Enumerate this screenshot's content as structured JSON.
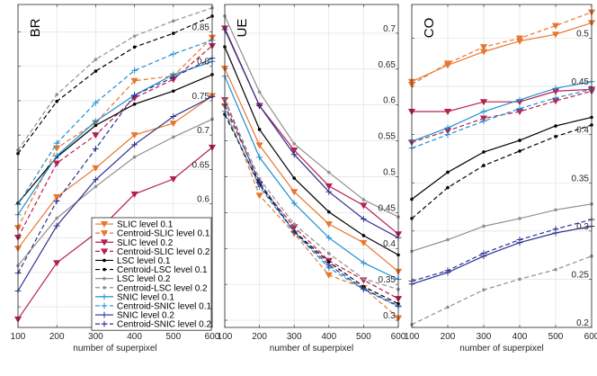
{
  "chart_data": [
    {
      "type": "line",
      "title": "BR",
      "xlabel": "number of superpixel",
      "ylabel": "",
      "x": [
        100,
        200,
        300,
        400,
        500,
        600
      ],
      "xlim": [
        100,
        600
      ],
      "ylim": [
        0.42,
        0.89
      ],
      "yticks": [
        0.45,
        0.5,
        0.55,
        0.6,
        0.65,
        0.7,
        0.75,
        0.8,
        0.85
      ],
      "ytick_labels": [
        "0.45",
        "0.5",
        "0.55",
        "0.6",
        "0.65",
        "0.7",
        "0.75",
        "0.8",
        "0.85"
      ],
      "grid": true,
      "legend_position": "bottom-right",
      "series": [
        {
          "name": "SLIC level 0.1",
          "color": "#e8772e",
          "dash": "solid",
          "marker": "triangle-down",
          "values": [
            0.535,
            0.61,
            0.652,
            0.7,
            0.717,
            0.757
          ]
        },
        {
          "name": "Centroid-SLIC level 0.1",
          "color": "#e8772e",
          "dash": "dashed",
          "marker": "triangle-down",
          "values": [
            0.565,
            0.681,
            0.718,
            0.779,
            0.786,
            0.842
          ]
        },
        {
          "name": "SLIC level 0.2",
          "color": "#b5204f",
          "dash": "solid",
          "marker": "triangle-down",
          "values": [
            0.432,
            0.514,
            0.557,
            0.614,
            0.636,
            0.682
          ]
        },
        {
          "name": "Centroid-SLIC level 0.2",
          "color": "#b5204f",
          "dash": "dashed",
          "marker": "triangle-down",
          "values": [
            0.551,
            0.659,
            0.7,
            0.754,
            0.781,
            0.83
          ]
        },
        {
          "name": "LSC level 0.1",
          "color": "#000000",
          "dash": "solid",
          "marker": "dot",
          "values": [
            0.601,
            0.668,
            0.714,
            0.745,
            0.764,
            0.788
          ]
        },
        {
          "name": "Centroid-LSC level 0.1",
          "color": "#000000",
          "dash": "dashed",
          "marker": "dot",
          "values": [
            0.673,
            0.749,
            0.793,
            0.828,
            0.848,
            0.873
          ]
        },
        {
          "name": "LSC level 0.2",
          "color": "#909090",
          "dash": "solid",
          "marker": "dot",
          "values": [
            0.51,
            0.579,
            0.625,
            0.668,
            0.697,
            0.723
          ]
        },
        {
          "name": "Centroid-LSC level 0.2",
          "color": "#909090",
          "dash": "dashed",
          "marker": "dot",
          "values": [
            0.678,
            0.759,
            0.81,
            0.844,
            0.866,
            0.885
          ]
        },
        {
          "name": "SNIC level 0.1",
          "color": "#1f8fd1",
          "dash": "solid",
          "marker": "plus",
          "values": [
            0.584,
            0.67,
            0.72,
            0.758,
            0.788,
            0.807
          ]
        },
        {
          "name": "Centroid-SNIC level 0.1",
          "color": "#1f8fd1",
          "dash": "dashed",
          "marker": "plus",
          "values": [
            0.599,
            0.688,
            0.747,
            0.794,
            0.818,
            0.838
          ]
        },
        {
          "name": "SNIC level 0.2",
          "color": "#2b2f8f",
          "dash": "solid",
          "marker": "plus",
          "values": [
            0.473,
            0.568,
            0.635,
            0.686,
            0.727,
            0.756
          ]
        },
        {
          "name": "Centroid-SNIC level 0.2",
          "color": "#2b2f8f",
          "dash": "dashed",
          "marker": "plus",
          "values": [
            0.499,
            0.604,
            0.68,
            0.758,
            0.784,
            0.812
          ]
        }
      ]
    },
    {
      "type": "line",
      "title": "UE",
      "xlabel": "number of superpixel",
      "ylabel": "",
      "x": [
        100,
        200,
        300,
        400,
        500,
        600
      ],
      "xlim": [
        100,
        600
      ],
      "ylim": [
        0.29,
        0.74
      ],
      "yticks": [
        0.3,
        0.35,
        0.4,
        0.45,
        0.5,
        0.55,
        0.6,
        0.65,
        0.7
      ],
      "ytick_labels": [
        "0.3",
        "0.35",
        "0.4",
        "0.45",
        "0.5",
        "0.55",
        "0.6",
        "0.65",
        "0.7"
      ],
      "grid": true,
      "series": [
        {
          "name": "SLIC level 0.1",
          "color": "#e8772e",
          "dash": "solid",
          "marker": "triangle-down",
          "values": [
            0.651,
            0.544,
            0.479,
            0.434,
            0.408,
            0.368
          ]
        },
        {
          "name": "Centroid-SLIC level 0.1",
          "color": "#e8772e",
          "dash": "dashed",
          "marker": "triangle-down",
          "values": [
            0.599,
            0.474,
            0.421,
            0.363,
            0.345,
            0.303
          ]
        },
        {
          "name": "SLIC level 0.2",
          "color": "#b5204f",
          "dash": "solid",
          "marker": "triangle-down",
          "values": [
            0.707,
            0.599,
            0.537,
            0.487,
            0.46,
            0.42
          ]
        },
        {
          "name": "Centroid-SLIC level 0.2",
          "color": "#b5204f",
          "dash": "dashed",
          "marker": "triangle-down",
          "values": [
            0.607,
            0.489,
            0.43,
            0.383,
            0.356,
            0.33
          ]
        },
        {
          "name": "LSC level 0.1",
          "color": "#000000",
          "dash": "solid",
          "marker": "dot",
          "values": [
            0.681,
            0.566,
            0.498,
            0.451,
            0.418,
            0.391
          ]
        },
        {
          "name": "Centroid-LSC level 0.1",
          "color": "#000000",
          "dash": "dashed",
          "marker": "dot",
          "values": [
            0.587,
            0.489,
            0.424,
            0.381,
            0.347,
            0.323
          ]
        },
        {
          "name": "LSC level 0.2",
          "color": "#909090",
          "dash": "solid",
          "marker": "dot",
          "values": [
            0.724,
            0.618,
            0.546,
            0.506,
            0.468,
            0.444
          ]
        },
        {
          "name": "Centroid-LSC level 0.2",
          "color": "#909090",
          "dash": "dashed",
          "marker": "dot",
          "values": [
            0.608,
            0.497,
            0.434,
            0.393,
            0.358,
            0.343
          ]
        },
        {
          "name": "SNIC level 0.1",
          "color": "#1f8fd1",
          "dash": "solid",
          "marker": "plus",
          "values": [
            0.64,
            0.527,
            0.463,
            0.415,
            0.38,
            0.357
          ]
        },
        {
          "name": "Centroid-SNIC level 0.1",
          "color": "#1f8fd1",
          "dash": "dashed",
          "marker": "plus",
          "values": [
            0.591,
            0.486,
            0.423,
            0.373,
            0.343,
            0.319
          ]
        },
        {
          "name": "SNIC level 0.2",
          "color": "#2b2f8f",
          "dash": "solid",
          "marker": "plus",
          "values": [
            0.705,
            0.599,
            0.531,
            0.479,
            0.441,
            0.415
          ]
        },
        {
          "name": "Centroid-SNIC level 0.2",
          "color": "#2b2f8f",
          "dash": "dashed",
          "marker": "plus",
          "values": [
            0.6,
            0.493,
            0.423,
            0.377,
            0.344,
            0.32
          ]
        }
      ]
    },
    {
      "type": "line",
      "title": "CO",
      "xlabel": "number of superpixel",
      "ylabel": "",
      "x": [
        100,
        200,
        300,
        400,
        500,
        600
      ],
      "xlim": [
        100,
        600
      ],
      "ylim": [
        0.2,
        0.535
      ],
      "yticks": [
        0.2,
        0.25,
        0.3,
        0.35,
        0.4,
        0.45,
        0.5
      ],
      "ytick_labels": [
        "0.2",
        "0.25",
        "0.3",
        "0.35",
        "0.4",
        "0.45",
        "0.5"
      ],
      "grid": true,
      "series": [
        {
          "name": "SLIC level 0.1",
          "color": "#e8772e",
          "dash": "solid",
          "marker": "triangle-down",
          "values": [
            0.455,
            0.472,
            0.486,
            0.497,
            0.504,
            0.516
          ]
        },
        {
          "name": "Centroid-SLIC level 0.1",
          "color": "#e8772e",
          "dash": "dashed",
          "marker": "triangle-down",
          "values": [
            0.452,
            0.474,
            0.491,
            0.5,
            0.513,
            0.527
          ]
        },
        {
          "name": "SLIC level 0.2",
          "color": "#b5204f",
          "dash": "solid",
          "marker": "triangle-down",
          "values": [
            0.424,
            0.424,
            0.434,
            0.434,
            0.445,
            0.447
          ]
        },
        {
          "name": "Centroid-SLIC level 0.2",
          "color": "#b5204f",
          "dash": "dashed",
          "marker": "triangle-down",
          "values": [
            0.392,
            0.404,
            0.417,
            0.424,
            0.435,
            0.445
          ]
        },
        {
          "name": "LSC level 0.1",
          "color": "#000000",
          "dash": "solid",
          "marker": "dot",
          "values": [
            0.333,
            0.361,
            0.382,
            0.394,
            0.409,
            0.418
          ]
        },
        {
          "name": "Centroid-LSC level 0.1",
          "color": "#000000",
          "dash": "dashed",
          "marker": "dot",
          "values": [
            0.313,
            0.345,
            0.368,
            0.383,
            0.398,
            0.41
          ]
        },
        {
          "name": "LSC level 0.2",
          "color": "#909090",
          "dash": "solid",
          "marker": "dot",
          "values": [
            0.279,
            0.291,
            0.305,
            0.313,
            0.322,
            0.328
          ]
        },
        {
          "name": "Centroid-LSC level 0.2",
          "color": "#909090",
          "dash": "dashed",
          "marker": "dot",
          "values": [
            0.203,
            0.221,
            0.239,
            0.25,
            0.26,
            0.274
          ]
        },
        {
          "name": "SNIC level 0.1",
          "color": "#1f8fd1",
          "dash": "solid",
          "marker": "plus",
          "values": [
            0.393,
            0.407,
            0.424,
            0.436,
            0.448,
            0.455
          ]
        },
        {
          "name": "Centroid-SNIC level 0.1",
          "color": "#1f8fd1",
          "dash": "dashed",
          "marker": "plus",
          "values": [
            0.386,
            0.4,
            0.414,
            0.427,
            0.438,
            0.447
          ]
        },
        {
          "name": "SNIC level 0.2",
          "color": "#2b2f8f",
          "dash": "solid",
          "marker": "plus",
          "values": [
            0.245,
            0.257,
            0.274,
            0.288,
            0.298,
            0.305
          ]
        },
        {
          "name": "Centroid-SNIC level 0.2",
          "color": "#2b2f8f",
          "dash": "dashed",
          "marker": "plus",
          "values": [
            0.248,
            0.259,
            0.277,
            0.291,
            0.302,
            0.312
          ]
        }
      ]
    }
  ]
}
